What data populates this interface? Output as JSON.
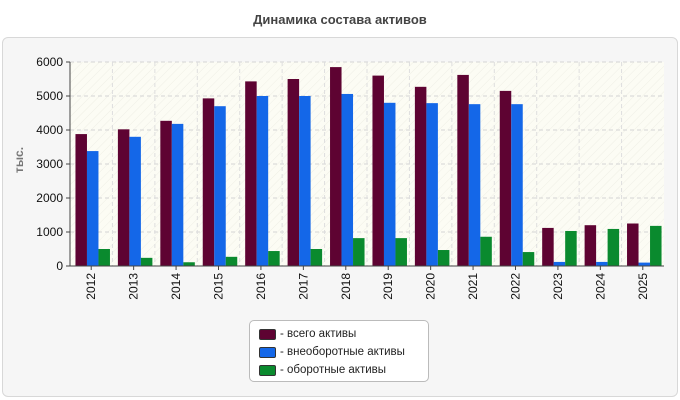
{
  "title": "Динамика состава активов",
  "chart_data": {
    "type": "bar",
    "title": "Динамика состава активов",
    "ylabel": "тыс.",
    "xlabel": "",
    "ylim": [
      0,
      6000
    ],
    "yticks": [
      0,
      1000,
      2000,
      3000,
      4000,
      5000,
      6000
    ],
    "grid": true,
    "legend_position": "bottom-center",
    "categories": [
      "2012",
      "2013",
      "2014",
      "2015",
      "2016",
      "2017",
      "2018",
      "2019",
      "2020",
      "2021",
      "2022",
      "2023",
      "2024",
      "2025"
    ],
    "series": [
      {
        "name": "- всего активы",
        "color": "#5e0332",
        "values": [
          3880,
          4020,
          4270,
          4930,
          5430,
          5500,
          5850,
          5600,
          5270,
          5620,
          5150,
          1120,
          1200,
          1250
        ]
      },
      {
        "name": "- внеоборотные активы",
        "color": "#1467e8",
        "values": [
          3380,
          3800,
          4180,
          4700,
          5000,
          5000,
          5060,
          4800,
          4790,
          4760,
          4760,
          120,
          120,
          100
        ]
      },
      {
        "name": "- оборотные активы",
        "color": "#0a8a2e",
        "values": [
          500,
          240,
          110,
          270,
          440,
          500,
          820,
          820,
          470,
          860,
          410,
          1030,
          1090,
          1180
        ]
      }
    ]
  }
}
